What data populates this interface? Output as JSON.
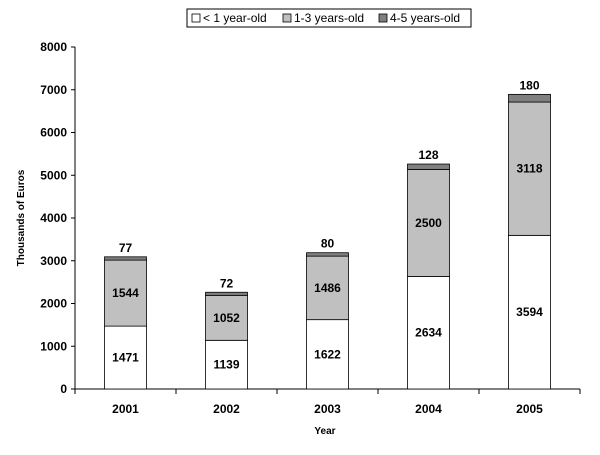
{
  "chart_data": {
    "type": "bar",
    "stacked": true,
    "categories": [
      "2001",
      "2002",
      "2003",
      "2004",
      "2005"
    ],
    "series": [
      {
        "name": "< 1 year-old",
        "values": [
          1471,
          1139,
          1622,
          2634,
          3594
        ],
        "color": "#ffffff"
      },
      {
        "name": "1-3 years-old",
        "values": [
          1544,
          1052,
          1486,
          2500,
          3118
        ],
        "color": "#c0c0c0"
      },
      {
        "name": "4-5 years-old",
        "values": [
          77,
          72,
          80,
          128,
          180
        ],
        "color": "#808080"
      }
    ],
    "xlabel": "Year",
    "ylabel": "Thousands of Euros",
    "ylim": [
      0,
      8000
    ],
    "yticks": [
      0,
      1000,
      2000,
      3000,
      4000,
      5000,
      6000,
      7000,
      8000
    ],
    "grid": false,
    "legend_position": "top-right"
  }
}
